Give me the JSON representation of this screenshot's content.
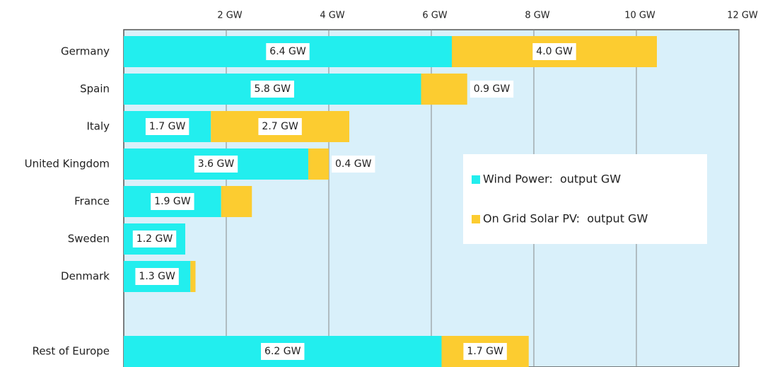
{
  "chart_data": {
    "type": "stacked-barh",
    "categories": [
      "Germany",
      "Spain",
      "Italy",
      "United Kingdom",
      "France",
      "Sweden",
      "Denmark",
      null,
      "Rest of Europe"
    ],
    "series": [
      {
        "name": "Wind Power:  output GW",
        "color": "#22eeee",
        "values": [
          6.4,
          5.8,
          1.7,
          3.6,
          1.9,
          1.2,
          1.3,
          null,
          6.2
        ],
        "value_labels": [
          "6.4 GW",
          "5.8 GW",
          "1.7 GW",
          "3.6 GW",
          "1.9 GW",
          "1.2 GW",
          "1.3 GW",
          null,
          "6.2 GW"
        ]
      },
      {
        "name": "On Grid Solar PV:  output GW",
        "color": "#fccc30",
        "values": [
          4.0,
          0.9,
          2.7,
          0.4,
          0.6,
          0,
          0.1,
          null,
          1.7
        ],
        "value_labels": [
          "4.0 GW",
          "0.9 GW",
          "2.7 GW",
          "0.4 GW",
          null,
          null,
          null,
          null,
          "1.7 GW"
        ]
      }
    ],
    "xlim": [
      0,
      12
    ],
    "xticks": [
      {
        "value": 2,
        "label": "2 GW"
      },
      {
        "value": 4,
        "label": "4 GW"
      },
      {
        "value": 6,
        "label": "6 GW"
      },
      {
        "value": 8,
        "label": "8 GW"
      },
      {
        "value": 10,
        "label": "10 GW"
      },
      {
        "value": 12,
        "label": "12 GW"
      }
    ],
    "grid": true,
    "legend": "center-right"
  }
}
